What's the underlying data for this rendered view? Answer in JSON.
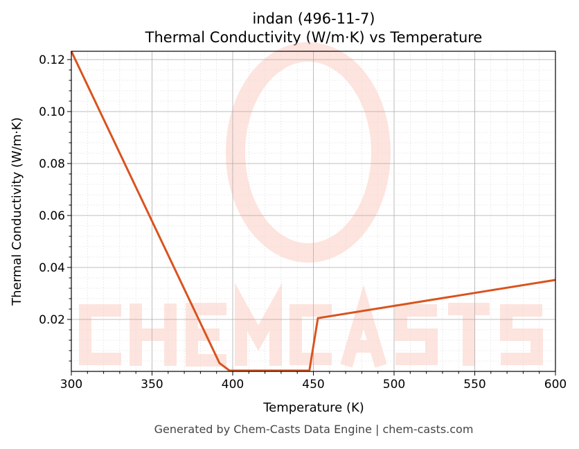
{
  "chart_data": {
    "type": "line",
    "title": "indan (496-11-7)",
    "subtitle": "Thermal Conductivity (W/m·K) vs Temperature",
    "xlabel": "Temperature (K)",
    "ylabel": "Thermal Conductivity (W/m·K)",
    "xlim": [
      300,
      600
    ],
    "ylim": [
      0,
      0.1232
    ],
    "xticks": [
      300,
      350,
      400,
      450,
      500,
      550,
      600
    ],
    "xtick_labels": [
      "300",
      "350",
      "400",
      "450",
      "500",
      "550",
      "600"
    ],
    "yticks": [
      0.02,
      0.04,
      0.06,
      0.08,
      0.1,
      0.12
    ],
    "ytick_labels": [
      "0.02",
      "0.04",
      "0.06",
      "0.08",
      "0.10",
      "0.12"
    ],
    "grid": true,
    "color": "#d9531e",
    "x": [
      300,
      391.8,
      398,
      447.5,
      452.8,
      600
    ],
    "y": [
      0.1232,
      0.0032,
      0.0003,
      0.0003,
      0.0205,
      0.0352
    ]
  },
  "watermark": "CHEMCASTS",
  "footer": "Generated by Chem-Casts Data Engine | chem-casts.com"
}
